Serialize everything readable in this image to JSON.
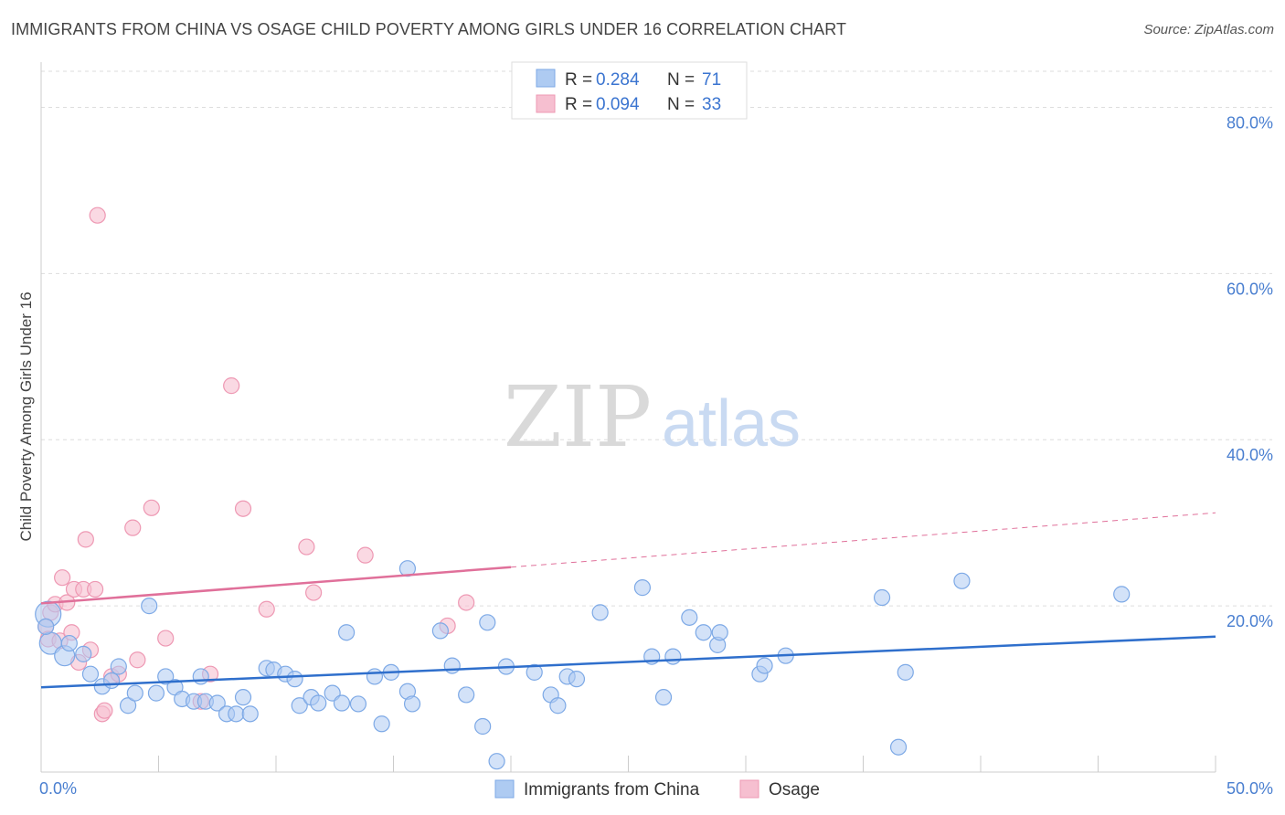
{
  "title": "IMMIGRANTS FROM CHINA VS OSAGE CHILD POVERTY AMONG GIRLS UNDER 16 CORRELATION CHART",
  "source": "Source: ZipAtlas.com",
  "watermark": {
    "zip": "ZIP",
    "atlas": "atlas"
  },
  "colors": {
    "blue_fill": "#aecbf2",
    "blue_stroke": "#7da9e6",
    "blue_line": "#2f6fcc",
    "pink_fill": "#f6bfd0",
    "pink_stroke": "#ee98b3",
    "pink_line": "#e0709a",
    "tick_text": "#4a7fd0",
    "grid": "#dddddd"
  },
  "legend": {
    "rows": [
      {
        "r_label": "R =",
        "r_value": "0.284",
        "n_label": "N =",
        "n_value": "71"
      },
      {
        "r_label": "R =",
        "r_value": "0.094",
        "n_label": "N =",
        "n_value": "33"
      }
    ]
  },
  "chart_data": {
    "type": "scatter",
    "xlabel": "",
    "ylabel": "Child Poverty Among Girls Under 16",
    "xlim": [
      0,
      50
    ],
    "ylim": [
      0,
      85
    ],
    "x_tick_labels": [
      "0.0%",
      "50.0%"
    ],
    "y_ticks": [
      20,
      40,
      60,
      80
    ],
    "y_tick_labels": [
      "20.0%",
      "40.0%",
      "60.0%",
      "80.0%"
    ],
    "grid": "horizontal dashed",
    "legend_placement": "top-center",
    "series": [
      {
        "name": "Immigrants from China",
        "color": "#aecbf2",
        "trend": {
          "x0": 0,
          "y0": 10.2,
          "x1": 50,
          "y1": 16.3,
          "dashed_from": null
        },
        "points": [
          [
            0.3,
            19.0
          ],
          [
            0.4,
            15.5
          ],
          [
            1.0,
            14.0
          ],
          [
            1.2,
            15.5
          ],
          [
            1.8,
            14.2
          ],
          [
            2.1,
            11.8
          ],
          [
            2.6,
            10.3
          ],
          [
            3.0,
            11.0
          ],
          [
            3.3,
            12.7
          ],
          [
            3.7,
            8.0
          ],
          [
            4.0,
            9.5
          ],
          [
            4.6,
            20.0
          ],
          [
            4.9,
            9.5
          ],
          [
            5.3,
            11.5
          ],
          [
            5.7,
            10.2
          ],
          [
            6.0,
            8.8
          ],
          [
            6.5,
            8.5
          ],
          [
            6.8,
            11.5
          ],
          [
            7.0,
            8.5
          ],
          [
            7.5,
            8.3
          ],
          [
            7.9,
            7.0
          ],
          [
            8.3,
            7.0
          ],
          [
            8.6,
            9.0
          ],
          [
            8.9,
            7.0
          ],
          [
            9.6,
            12.5
          ],
          [
            9.9,
            12.3
          ],
          [
            10.4,
            11.8
          ],
          [
            10.8,
            11.2
          ],
          [
            11.0,
            8.0
          ],
          [
            11.5,
            9.0
          ],
          [
            11.8,
            8.3
          ],
          [
            12.4,
            9.5
          ],
          [
            12.8,
            8.3
          ],
          [
            13.0,
            16.8
          ],
          [
            13.5,
            8.2
          ],
          [
            14.2,
            11.5
          ],
          [
            14.5,
            5.8
          ],
          [
            14.9,
            12.0
          ],
          [
            15.6,
            9.7
          ],
          [
            15.8,
            8.2
          ],
          [
            15.6,
            24.5
          ],
          [
            17.0,
            17.0
          ],
          [
            17.5,
            12.8
          ],
          [
            18.1,
            9.3
          ],
          [
            18.8,
            5.5
          ],
          [
            19.0,
            18.0
          ],
          [
            19.4,
            1.3
          ],
          [
            19.8,
            12.7
          ],
          [
            21.0,
            12.0
          ],
          [
            21.7,
            9.3
          ],
          [
            22.0,
            8.0
          ],
          [
            22.4,
            11.5
          ],
          [
            22.8,
            11.2
          ],
          [
            23.8,
            19.2
          ],
          [
            25.6,
            22.2
          ],
          [
            26.0,
            13.9
          ],
          [
            26.5,
            9.0
          ],
          [
            26.9,
            13.9
          ],
          [
            27.6,
            18.6
          ],
          [
            28.2,
            16.8
          ],
          [
            28.8,
            15.3
          ],
          [
            28.9,
            16.8
          ],
          [
            30.6,
            11.8
          ],
          [
            30.8,
            12.8
          ],
          [
            31.7,
            14.0
          ],
          [
            35.8,
            21.0
          ],
          [
            36.5,
            3.0
          ],
          [
            36.8,
            12.0
          ],
          [
            39.2,
            23.0
          ],
          [
            46.0,
            21.4
          ],
          [
            0.2,
            17.5
          ]
        ],
        "point_sizes": {
          "0": 14,
          "1": 12,
          "2": 11
        }
      },
      {
        "name": "Osage",
        "color": "#f6bfd0",
        "trend": {
          "x0": 0,
          "y0": 20.3,
          "x1": 50,
          "y1": 31.2,
          "dashed_from": 20
        },
        "points": [
          [
            0.2,
            17.5
          ],
          [
            0.3,
            16.0
          ],
          [
            0.4,
            19.2
          ],
          [
            0.6,
            20.2
          ],
          [
            0.8,
            15.8
          ],
          [
            0.9,
            23.4
          ],
          [
            1.1,
            20.4
          ],
          [
            1.3,
            16.8
          ],
          [
            1.4,
            22.0
          ],
          [
            1.6,
            13.2
          ],
          [
            1.8,
            22.0
          ],
          [
            1.9,
            28.0
          ],
          [
            2.1,
            14.7
          ],
          [
            2.3,
            22.0
          ],
          [
            2.4,
            67.0
          ],
          [
            2.6,
            7.0
          ],
          [
            2.7,
            7.4
          ],
          [
            3.0,
            11.5
          ],
          [
            3.3,
            11.8
          ],
          [
            3.9,
            29.4
          ],
          [
            4.1,
            13.5
          ],
          [
            4.7,
            31.8
          ],
          [
            5.3,
            16.1
          ],
          [
            6.8,
            8.5
          ],
          [
            7.2,
            11.8
          ],
          [
            8.1,
            46.5
          ],
          [
            8.6,
            31.7
          ],
          [
            9.6,
            19.6
          ],
          [
            11.3,
            27.1
          ],
          [
            11.6,
            21.6
          ],
          [
            13.8,
            26.1
          ],
          [
            17.3,
            17.6
          ],
          [
            18.1,
            20.4
          ]
        ]
      }
    ]
  },
  "bottom_legend": {
    "items": [
      {
        "label": "Immigrants from China"
      },
      {
        "label": "Osage"
      }
    ]
  }
}
